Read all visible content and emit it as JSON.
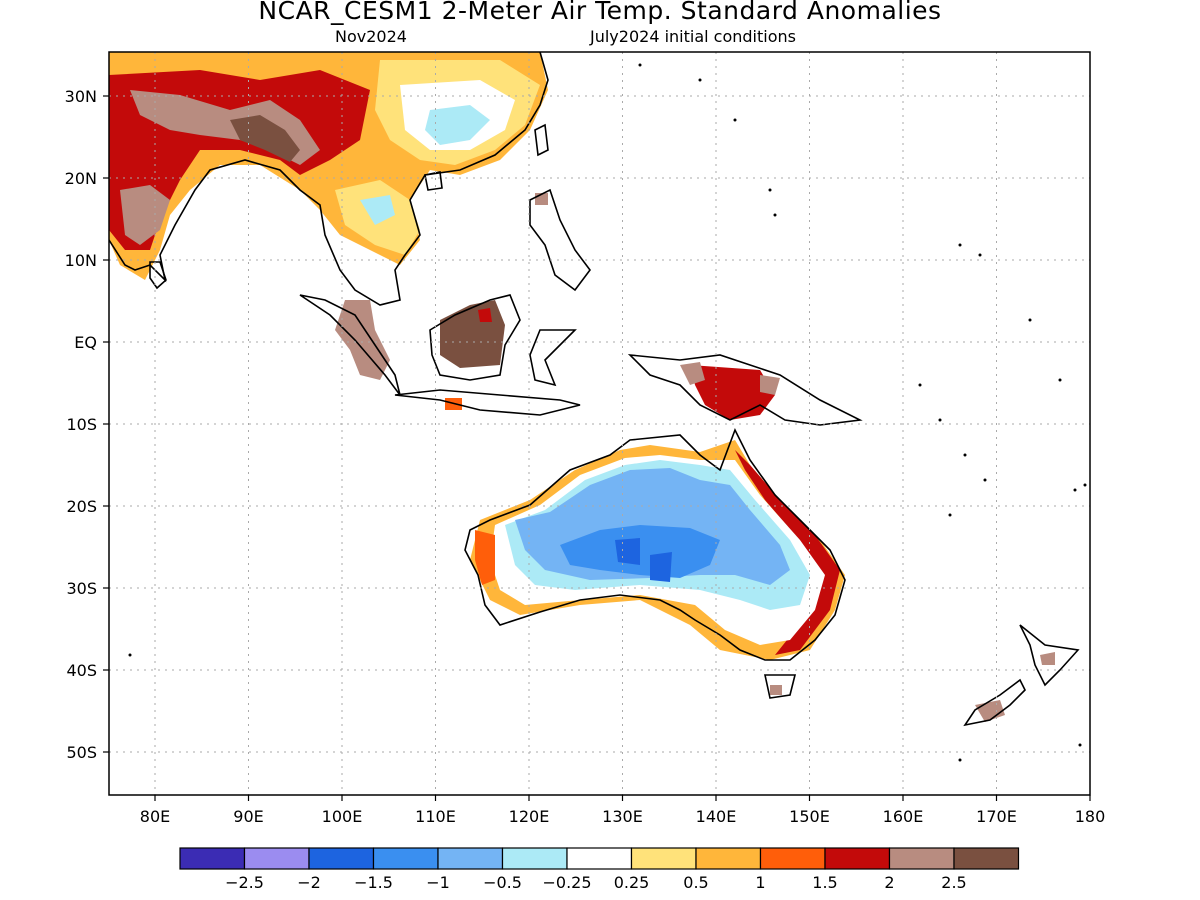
{
  "title": "NCAR_CESM1 2-Meter Air Temp. Standard Anomalies",
  "subtitle_left": "Nov2024",
  "subtitle_right": "July2024 initial conditions",
  "lat_labels": [
    "30N",
    "20N",
    "10N",
    "EQ",
    "10S",
    "20S",
    "30S",
    "40S",
    "50S"
  ],
  "lon_labels": [
    "80E",
    "90E",
    "100E",
    "110E",
    "120E",
    "130E",
    "140E",
    "150E",
    "160E",
    "170E",
    "180"
  ],
  "colorbar": {
    "colors": [
      "#3b2cb4",
      "#9b8cf0",
      "#1d64e0",
      "#3a8ff0",
      "#74b4f4",
      "#aceaf6",
      "#ffffff",
      "#ffe27a",
      "#ffb63a",
      "#ff5e0a",
      "#c30a0a",
      "#b88c80",
      "#7a5040"
    ],
    "tick_labels": [
      "-2.5",
      "-2",
      "-1.5",
      "-1",
      "-0.5",
      "-0.25",
      "0.25",
      "0.5",
      "1",
      "1.5",
      "2",
      "2.5"
    ]
  }
}
